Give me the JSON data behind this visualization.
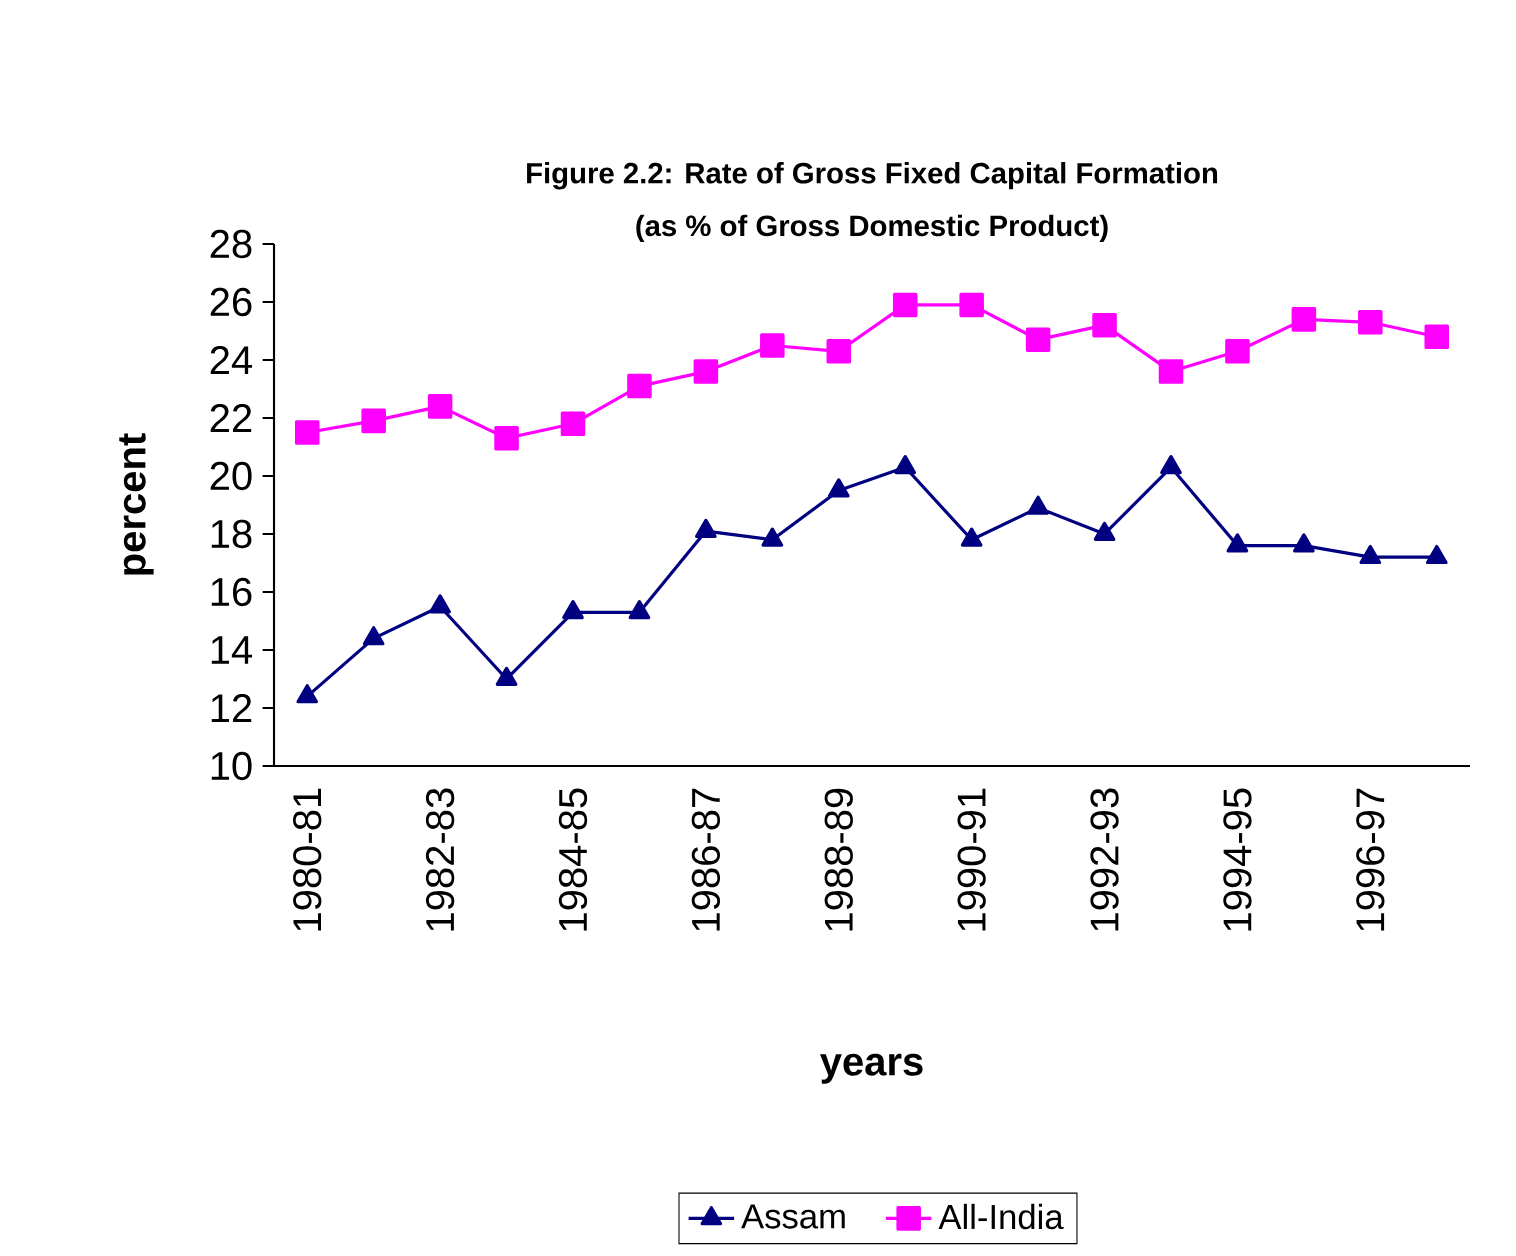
{
  "chart_data": {
    "type": "line",
    "title": "Figure 2.2: Rate of Gross Fixed Capital Formation",
    "subtitle": "(as % of Gross Domestic Product)",
    "xlabel": "years",
    "ylabel": "percent",
    "categories": [
      "1980-81",
      null,
      "1982-83",
      null,
      "1984-85",
      null,
      "1986-87",
      null,
      "1988-89",
      null,
      "1990-91",
      null,
      "1992-93",
      null,
      "1994-95",
      null,
      "1996-97",
      null
    ],
    "series": [
      {
        "name": "Assam",
        "color": "#000080",
        "marker": "triangle",
        "values": [
          12.4,
          14.4,
          15.5,
          13.0,
          15.3,
          15.3,
          18.1,
          17.8,
          19.5,
          20.3,
          17.8,
          18.9,
          18.0,
          20.3,
          17.6,
          17.6,
          17.2,
          17.2
        ]
      },
      {
        "name": "All-India",
        "color": "#ff00ff",
        "marker": "square",
        "values": [
          21.5,
          21.9,
          22.4,
          21.3,
          21.8,
          23.1,
          23.6,
          24.5,
          24.3,
          25.9,
          25.9,
          24.7,
          25.2,
          23.6,
          24.3,
          25.4,
          25.3,
          24.8
        ]
      }
    ],
    "ylim": [
      10,
      28
    ],
    "yticks": [
      10,
      12,
      14,
      16,
      18,
      20,
      22,
      24,
      26,
      28
    ],
    "grid": false,
    "legend": "bottom",
    "line_style": "solid"
  }
}
